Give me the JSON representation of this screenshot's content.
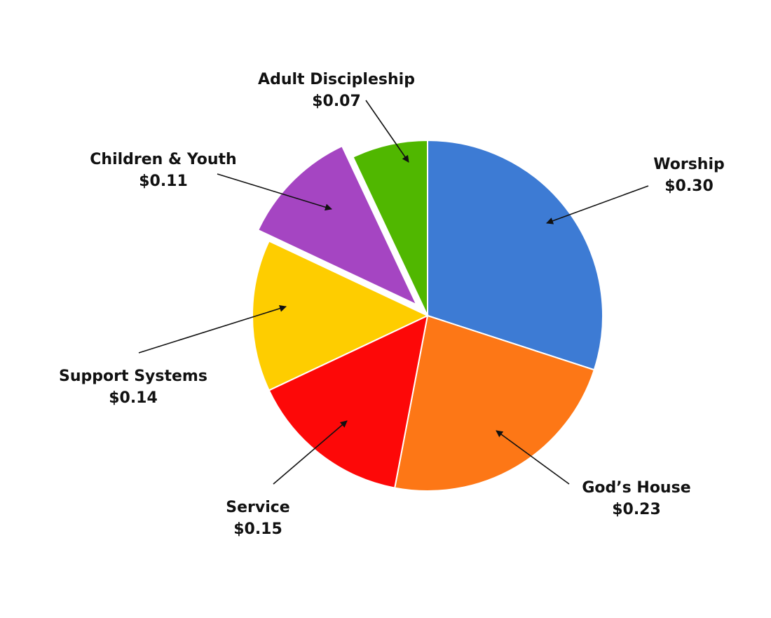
{
  "chart_data": {
    "type": "pie",
    "title": "",
    "start": "top",
    "direction": "clockwise",
    "exploded": [
      "Children & Youth"
    ],
    "slices": [
      {
        "label": "Worship",
        "value": 0.3,
        "value_label": "$0.30",
        "color": "#3d7bd4"
      },
      {
        "label": "God’s House",
        "value": 0.23,
        "value_label": "$0.23",
        "color": "#fd7716"
      },
      {
        "label": "Service",
        "value": 0.15,
        "value_label": "$0.15",
        "color": "#fd0808"
      },
      {
        "label": "Support Systems",
        "value": 0.14,
        "value_label": "$0.14",
        "color": "#fecd00"
      },
      {
        "label": "Children & Youth",
        "value": 0.11,
        "value_label": "$0.11",
        "color": "#a545c2"
      },
      {
        "label": "Adult Discipleship",
        "value": 0.07,
        "value_label": "$0.07",
        "color": "#50b700"
      }
    ]
  }
}
